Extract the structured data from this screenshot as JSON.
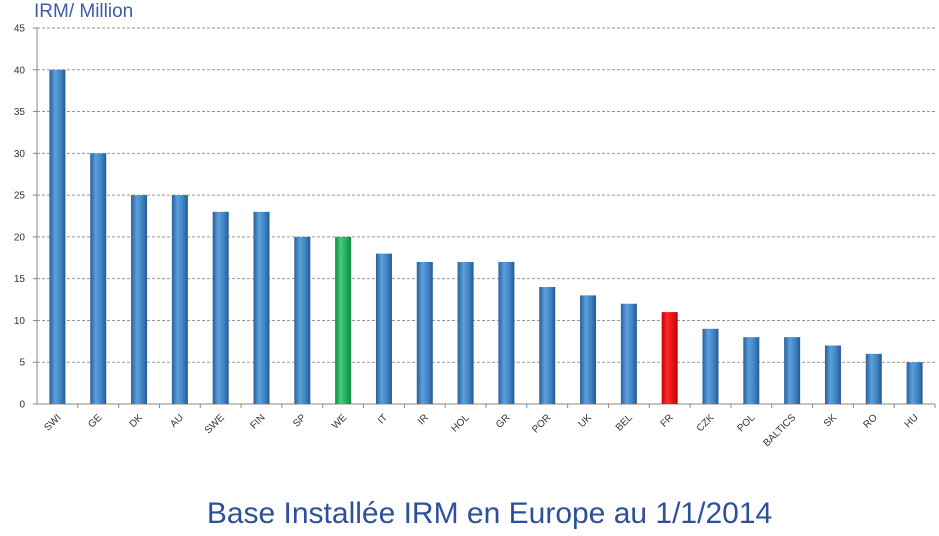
{
  "chart_data": {
    "type": "bar",
    "title": "Base Installée IRM en Europe au 1/1/2014",
    "ylabel": "IRM/ Million",
    "xlabel": "",
    "ylim": [
      0,
      45
    ],
    "yticks": [
      0,
      5,
      10,
      15,
      20,
      25,
      30,
      35,
      40,
      45
    ],
    "grid": true,
    "categories": [
      "SWI",
      "GE",
      "DK",
      "AU",
      "SWE",
      "FIN",
      "SP",
      "WE",
      "IT",
      "IR",
      "HOL",
      "GR",
      "POR",
      "UK",
      "BEL",
      "FR",
      "CZK",
      "POL",
      "BALTICS",
      "SK",
      "RO",
      "HU"
    ],
    "values": [
      40,
      30,
      25,
      25,
      23,
      23,
      20,
      20,
      18,
      17,
      17,
      17,
      14,
      13,
      12,
      11,
      9,
      8,
      8,
      7,
      6,
      5
    ],
    "colors": {
      "default": "#3f83c4",
      "WE": "#1fb35a",
      "FR": "#ee1111"
    }
  }
}
